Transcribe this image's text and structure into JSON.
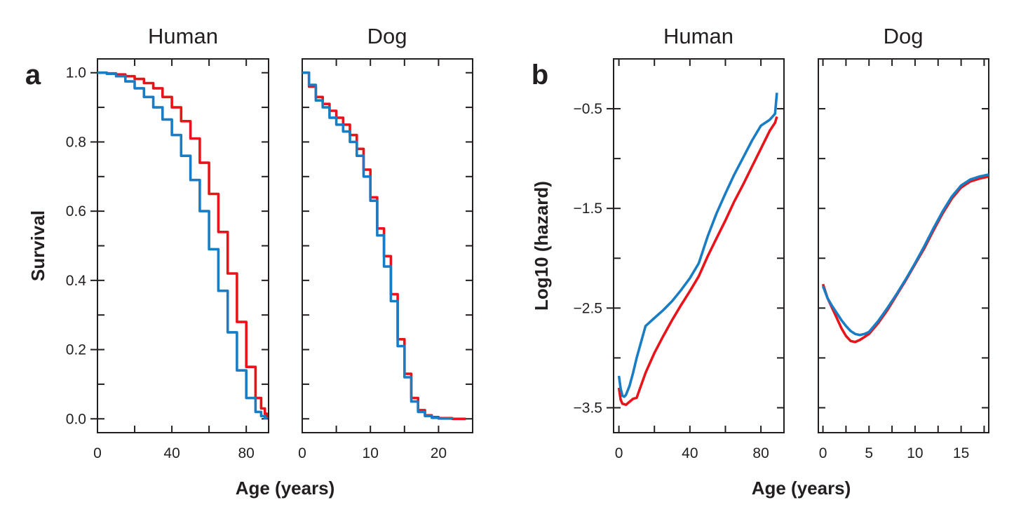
{
  "colors": {
    "red": "#e8141a",
    "blue": "#1a7dc4",
    "axis": "#231f20"
  },
  "chart_data": [
    {
      "type": "line",
      "panel_label": "a",
      "title": "Human",
      "xlabel": "Age (years)",
      "ylabel": "Survival",
      "xlim": [
        0,
        92
      ],
      "ylim": [
        -0.04,
        1.04
      ],
      "xticks": [
        "0",
        "40",
        "80"
      ],
      "yticks": [
        "0.0",
        "0.2",
        "0.4",
        "0.6",
        "0.8",
        "1.0"
      ],
      "step": true,
      "series": [
        {
          "color": "red",
          "x": [
            0,
            5,
            10,
            15,
            20,
            25,
            30,
            35,
            40,
            45,
            50,
            55,
            60,
            65,
            70,
            75,
            80,
            85,
            88,
            90,
            91
          ],
          "values": [
            1.0,
            0.998,
            0.995,
            0.99,
            0.982,
            0.97,
            0.955,
            0.93,
            0.9,
            0.86,
            0.81,
            0.74,
            0.65,
            0.54,
            0.42,
            0.28,
            0.15,
            0.06,
            0.03,
            0.015,
            0.0
          ]
        },
        {
          "color": "blue",
          "x": [
            0,
            5,
            10,
            15,
            20,
            25,
            30,
            35,
            40,
            45,
            50,
            55,
            60,
            65,
            70,
            75,
            80,
            85,
            88,
            90,
            91
          ],
          "values": [
            1.0,
            0.997,
            0.99,
            0.975,
            0.955,
            0.93,
            0.9,
            0.865,
            0.82,
            0.76,
            0.69,
            0.6,
            0.49,
            0.37,
            0.25,
            0.14,
            0.06,
            0.02,
            0.008,
            0.002,
            0.0
          ]
        }
      ]
    },
    {
      "type": "line",
      "title": "Dog",
      "xlabel": "",
      "ylabel": "",
      "xlim": [
        0,
        25
      ],
      "ylim": [
        -0.04,
        1.04
      ],
      "xticks": [
        "0",
        "10",
        "20"
      ],
      "yticks": [],
      "step": true,
      "series": [
        {
          "color": "red",
          "x": [
            0,
            1,
            2,
            3,
            4,
            5,
            6,
            7,
            8,
            9,
            10,
            11,
            12,
            13,
            14,
            15,
            16,
            17,
            18,
            19,
            20,
            22,
            24
          ],
          "values": [
            1.0,
            0.96,
            0.93,
            0.91,
            0.89,
            0.87,
            0.85,
            0.82,
            0.78,
            0.72,
            0.64,
            0.55,
            0.47,
            0.36,
            0.23,
            0.13,
            0.06,
            0.025,
            0.01,
            0.005,
            0.002,
            0.0,
            0.0
          ]
        },
        {
          "color": "blue",
          "x": [
            0,
            1,
            2,
            3,
            4,
            5,
            6,
            7,
            8,
            9,
            10,
            11,
            12,
            13,
            14,
            15,
            16,
            17,
            18,
            19,
            20,
            22
          ],
          "values": [
            1.0,
            0.965,
            0.92,
            0.9,
            0.87,
            0.85,
            0.83,
            0.8,
            0.76,
            0.7,
            0.63,
            0.53,
            0.44,
            0.34,
            0.21,
            0.12,
            0.05,
            0.02,
            0.008,
            0.003,
            0.001,
            0.0
          ]
        }
      ]
    },
    {
      "type": "line",
      "panel_label": "b",
      "title": "Human",
      "xlabel": "Age (years)",
      "ylabel": "Log10 (hazard)",
      "xlim": [
        -3,
        93
      ],
      "ylim": [
        -3.75,
        0.0
      ],
      "xticks": [
        "0",
        "40",
        "80"
      ],
      "yticks": [
        "-3.5",
        "-2.5",
        "-1.5",
        "-0.5"
      ],
      "ytick_labels": [
        "−3.5",
        "−2.5",
        "−1.5",
        "−0.5"
      ],
      "series": [
        {
          "color": "red",
          "x": [
            0,
            1,
            2,
            4,
            6,
            8,
            10,
            15,
            20,
            25,
            30,
            35,
            40,
            45,
            50,
            55,
            60,
            65,
            70,
            75,
            80,
            85,
            88,
            89
          ],
          "values": [
            -3.3,
            -3.42,
            -3.46,
            -3.47,
            -3.44,
            -3.41,
            -3.4,
            -3.15,
            -2.95,
            -2.78,
            -2.62,
            -2.47,
            -2.33,
            -2.18,
            -1.98,
            -1.8,
            -1.62,
            -1.43,
            -1.26,
            -1.08,
            -0.9,
            -0.72,
            -0.64,
            -0.58
          ]
        },
        {
          "color": "blue",
          "x": [
            0,
            1,
            2,
            3,
            4,
            6,
            8,
            10,
            15,
            20,
            25,
            30,
            35,
            40,
            45,
            50,
            55,
            60,
            65,
            70,
            75,
            80,
            85,
            88,
            89
          ],
          "values": [
            -3.18,
            -3.31,
            -3.38,
            -3.39,
            -3.37,
            -3.28,
            -3.15,
            -3.0,
            -2.68,
            -2.6,
            -2.52,
            -2.43,
            -2.32,
            -2.2,
            -2.05,
            -1.78,
            -1.55,
            -1.35,
            -1.16,
            -0.99,
            -0.82,
            -0.67,
            -0.61,
            -0.55,
            -0.34
          ]
        }
      ]
    },
    {
      "type": "line",
      "title": "Dog",
      "xlabel": "",
      "ylabel": "",
      "xlim": [
        -0.5,
        18
      ],
      "ylim": [
        -3.75,
        0.0
      ],
      "xticks": [
        "0",
        "5",
        "10",
        "15"
      ],
      "yticks": [],
      "series": [
        {
          "color": "red",
          "x": [
            0,
            0.5,
            1,
            1.5,
            2,
            2.5,
            3,
            3.5,
            4,
            4.5,
            5,
            6,
            7,
            8,
            9,
            10,
            11,
            12,
            13,
            14,
            15,
            16,
            17,
            18
          ],
          "values": [
            -2.26,
            -2.4,
            -2.5,
            -2.6,
            -2.7,
            -2.78,
            -2.83,
            -2.84,
            -2.82,
            -2.79,
            -2.76,
            -2.65,
            -2.52,
            -2.37,
            -2.22,
            -2.06,
            -1.9,
            -1.72,
            -1.55,
            -1.4,
            -1.29,
            -1.23,
            -1.2,
            -1.18
          ]
        },
        {
          "color": "blue",
          "x": [
            0,
            0.5,
            1,
            1.5,
            2,
            2.5,
            3,
            3.5,
            4,
            4.5,
            5,
            6,
            7,
            8,
            9,
            10,
            11,
            12,
            13,
            14,
            15,
            16,
            17,
            18
          ],
          "values": [
            -2.28,
            -2.4,
            -2.48,
            -2.55,
            -2.62,
            -2.68,
            -2.73,
            -2.76,
            -2.77,
            -2.76,
            -2.74,
            -2.63,
            -2.5,
            -2.36,
            -2.21,
            -2.05,
            -1.88,
            -1.7,
            -1.53,
            -1.38,
            -1.27,
            -1.21,
            -1.18,
            -1.16
          ]
        }
      ]
    }
  ]
}
